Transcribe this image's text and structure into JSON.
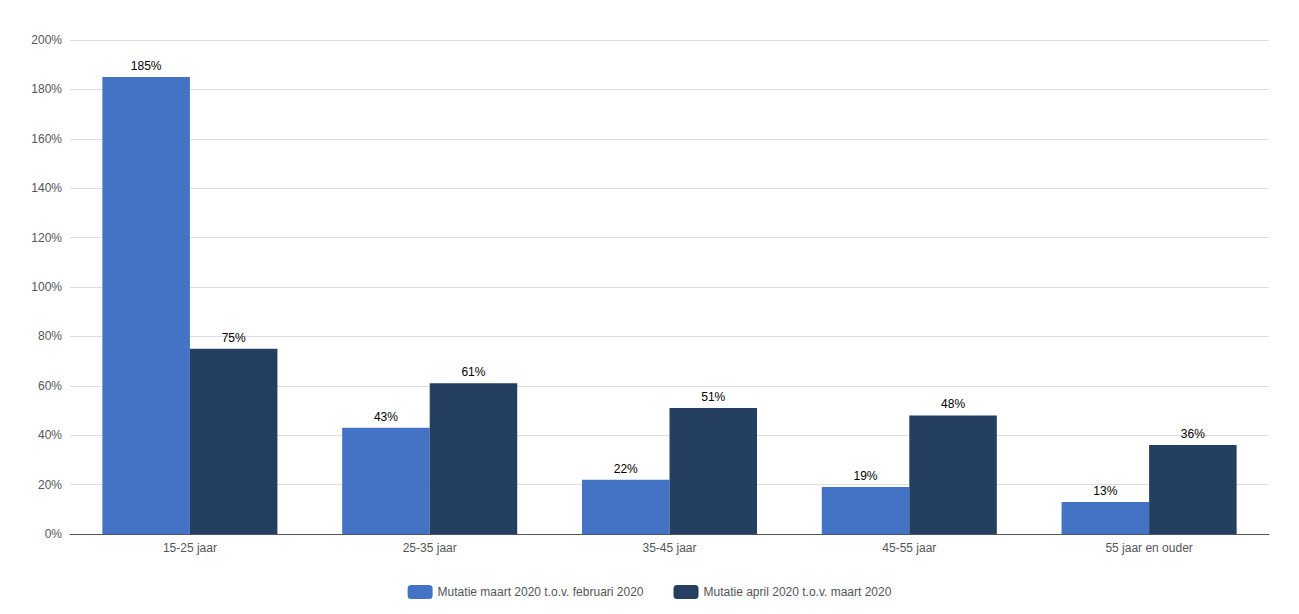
{
  "chart_data": {
    "type": "bar",
    "categories": [
      "15-25 jaar",
      "25-35 jaar",
      "35-45 jaar",
      "45-55 jaar",
      "55 jaar en ouder"
    ],
    "series": [
      {
        "name": "Mutatie maart 2020 t.o.v. februari 2020",
        "color": "#4472C4",
        "values": [
          1.85,
          0.43,
          0.22,
          0.19,
          0.13
        ],
        "value_labels": [
          "185%",
          "43%",
          "22%",
          "19%",
          "13%"
        ]
      },
      {
        "name": "Mutatie april 2020 t.o.v. maart 2020",
        "color": "#243F60",
        "values": [
          0.75,
          0.61,
          0.51,
          0.48,
          0.36
        ],
        "value_labels": [
          "75%",
          "61%",
          "51%",
          "48%",
          "36%"
        ]
      }
    ],
    "ylim": [
      0,
      2.0
    ],
    "yticks": [
      {
        "value": 0.0,
        "label": "0%"
      },
      {
        "value": 0.2,
        "label": "20%"
      },
      {
        "value": 0.4,
        "label": "40%"
      },
      {
        "value": 0.6,
        "label": "60%"
      },
      {
        "value": 0.8,
        "label": "80%"
      },
      {
        "value": 1.0,
        "label": "100%"
      },
      {
        "value": 1.2,
        "label": "120%"
      },
      {
        "value": 1.4,
        "label": "140%"
      },
      {
        "value": 1.6,
        "label": "160%"
      },
      {
        "value": 1.8,
        "label": "180%"
      },
      {
        "value": 2.0,
        "label": "200%"
      }
    ],
    "grid": true,
    "legend": "bottom",
    "data_labels": true
  }
}
